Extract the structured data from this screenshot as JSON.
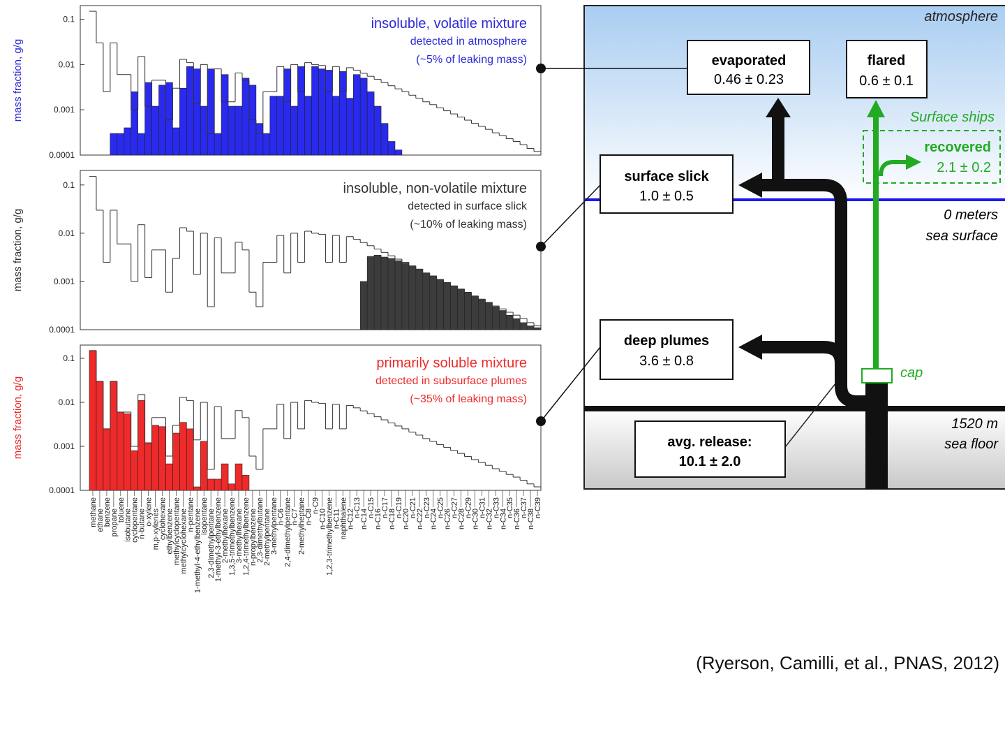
{
  "chart_data": [
    {
      "type": "bar",
      "log": true,
      "y_label": "mass fraction, g/g",
      "label_color": "#2b2bd8",
      "annotations": [
        "insoluble, volatile mixture",
        "detected in atmosphere",
        "(~5% of leaking mass)"
      ],
      "ylim": [
        0.0001,
        0.2
      ],
      "yticks": [
        0.1,
        0.01,
        0.001,
        0.0001
      ],
      "series": [
        {
          "kind": "step",
          "color": "#333333",
          "values": [
            0.15,
            0.03,
            0.0025,
            0.03,
            0.006,
            0.006,
            0.001,
            0.015,
            0.0012,
            0.0045,
            0.0045,
            0.0006,
            0.003,
            0.013,
            0.011,
            0.0014,
            0.01,
            0.0003,
            0.008,
            0.0015,
            0.0015,
            0.0065,
            0.0045,
            0.0006,
            0.0003,
            0.0025,
            0.0025,
            0.009,
            0.0015,
            0.01,
            0.0025,
            0.011,
            0.01,
            0.0095,
            0.0025,
            0.009,
            0.0025,
            0.0085,
            0.0075,
            0.0064,
            0.0055,
            0.0047,
            0.004,
            0.0034,
            0.0029,
            0.0025,
            0.0021,
            0.0018,
            0.0015,
            0.0013,
            0.0011,
            0.00095,
            0.00081,
            0.00069,
            0.00059,
            0.0005,
            0.00043,
            0.00037,
            0.00031,
            0.00027,
            0.00023,
            0.0002,
            0.00017,
            0.00014,
            0.00012
          ]
        },
        {
          "kind": "bar",
          "color": "#2a2aee",
          "values": [
            null,
            null,
            null,
            0.0003,
            0.0003,
            0.0004,
            0.0025,
            0.0003,
            0.004,
            0.0012,
            0.0035,
            0.004,
            0.0004,
            0.003,
            0.009,
            0.008,
            0.0012,
            0.008,
            0.0003,
            0.006,
            0.0012,
            0.0012,
            0.005,
            0.0035,
            0.0005,
            0.0003,
            0.002,
            0.002,
            0.008,
            0.0012,
            0.009,
            0.002,
            0.009,
            0.008,
            0.0075,
            0.002,
            0.007,
            0.0018,
            0.006,
            0.005,
            0.0025,
            0.0012,
            0.0005,
            0.0002,
            0.00013,
            null,
            null,
            null,
            null,
            null,
            null,
            null,
            null,
            null,
            null,
            null,
            null,
            null,
            null,
            null,
            null,
            null,
            null,
            null,
            null
          ]
        }
      ]
    },
    {
      "type": "bar",
      "log": true,
      "y_label": "mass fraction, g/g",
      "label_color": "#333333",
      "annotations": [
        "insoluble, non-volatile mixture",
        "detected in surface slick",
        "(~10% of leaking mass)"
      ],
      "ylim": [
        0.0001,
        0.2
      ],
      "yticks": [
        0.1,
        0.01,
        0.001,
        0.0001
      ],
      "series": [
        {
          "kind": "step",
          "color": "#333333",
          "values": [
            0.15,
            0.03,
            0.0025,
            0.03,
            0.006,
            0.006,
            0.001,
            0.015,
            0.0012,
            0.0045,
            0.0045,
            0.0006,
            0.003,
            0.013,
            0.011,
            0.0014,
            0.01,
            0.0003,
            0.008,
            0.0015,
            0.0015,
            0.0065,
            0.0045,
            0.0006,
            0.0003,
            0.0025,
            0.0025,
            0.009,
            0.0015,
            0.01,
            0.0025,
            0.011,
            0.01,
            0.0095,
            0.0025,
            0.009,
            0.0025,
            0.0085,
            0.0075,
            0.0064,
            0.0055,
            0.0047,
            0.004,
            0.0034,
            0.0029,
            0.0025,
            0.0021,
            0.0018,
            0.0015,
            0.0013,
            0.0011,
            0.00095,
            0.00081,
            0.00069,
            0.00059,
            0.0005,
            0.00043,
            0.00037,
            0.00031,
            0.00027,
            0.00023,
            0.0002,
            0.00017,
            0.00014,
            0.00012
          ]
        },
        {
          "kind": "bar",
          "color": "#3c3c3c",
          "values": [
            null,
            null,
            null,
            null,
            null,
            null,
            null,
            null,
            null,
            null,
            null,
            null,
            null,
            null,
            null,
            null,
            null,
            null,
            null,
            null,
            null,
            null,
            null,
            null,
            null,
            null,
            null,
            null,
            null,
            null,
            null,
            null,
            null,
            null,
            null,
            null,
            null,
            null,
            null,
            0.001,
            0.0033,
            0.0035,
            0.0032,
            0.003,
            0.0027,
            0.0024,
            0.0021,
            0.0018,
            0.0015,
            0.0013,
            0.0011,
            0.00095,
            0.0008,
            0.0007,
            0.0006,
            0.0005,
            0.00042,
            0.00036,
            0.0003,
            0.00025,
            0.0002,
            0.00017,
            0.00014,
            0.00012,
            0.00011
          ]
        }
      ]
    },
    {
      "type": "bar",
      "log": true,
      "y_label": "mass fraction, g/g",
      "label_color": "#ee2a2a",
      "annotations": [
        "primarily soluble mixture",
        "detected in subsurface plumes",
        "(~35% of leaking mass)"
      ],
      "ylim": [
        0.0001,
        0.2
      ],
      "yticks": [
        0.1,
        0.01,
        0.001,
        0.0001
      ],
      "categories": [
        "methane",
        "ethane",
        "benzene",
        "propane",
        "toluene",
        "isobutane",
        "cyclopentane",
        "n-butane",
        "o-xylene",
        "m,p-xylenes",
        "cyclohexane",
        "ethylbenzene",
        "methylcyclopentane",
        "methylcyclohexane",
        "n-pentane",
        "1-methyl-4-ethylbenzene",
        "isopentane",
        "2,3-dimethylpentane",
        "1-methyl-3-ethylbenzene",
        "2-methylhexane",
        "1,3,5-trimethylbenzene",
        "3-methylhexane",
        "1,2,4-trimethylbenzene",
        "n-propylbenzene",
        "2,3-dimethylbutane",
        "2-methylpentane",
        "3-methylpentane",
        "n-C6",
        "2,4-dimethylpentane",
        "n-C7",
        "2-methylheptane",
        "n-C8",
        "n-C9",
        "n-C10",
        "1,2,3-trimethylbenzene",
        "n-C11",
        "naphthalene",
        "n-C12",
        "n-C13",
        "n-C14",
        "n-C15",
        "n-C16",
        "n-C17",
        "n-C18",
        "n-C19",
        "n-C20",
        "n-C21",
        "n-C22",
        "n-C23",
        "n-C24",
        "n-C25",
        "n-C26",
        "n-C27",
        "n-C28",
        "n-C29",
        "n-C30",
        "n-C31",
        "n-C32",
        "n-C33",
        "n-C34",
        "n-C35",
        "n-C36",
        "n-C37",
        "n-C38",
        "n-C39"
      ],
      "series": [
        {
          "kind": "step",
          "color": "#333333",
          "values": [
            0.15,
            0.03,
            0.0025,
            0.03,
            0.006,
            0.006,
            0.001,
            0.015,
            0.0012,
            0.0045,
            0.0045,
            0.0006,
            0.003,
            0.013,
            0.011,
            0.0014,
            0.01,
            0.0003,
            0.008,
            0.0015,
            0.0015,
            0.0065,
            0.0045,
            0.0006,
            0.0003,
            0.0025,
            0.0025,
            0.009,
            0.0015,
            0.01,
            0.0025,
            0.011,
            0.01,
            0.0095,
            0.0025,
            0.009,
            0.0025,
            0.0085,
            0.0075,
            0.0064,
            0.0055,
            0.0047,
            0.004,
            0.0034,
            0.0029,
            0.0025,
            0.0021,
            0.0018,
            0.0015,
            0.0013,
            0.0011,
            0.00095,
            0.00081,
            0.00069,
            0.00059,
            0.0005,
            0.00043,
            0.00037,
            0.00031,
            0.00027,
            0.00023,
            0.0002,
            0.00017,
            0.00014,
            0.00012
          ]
        },
        {
          "kind": "bar",
          "color": "#ee2a2a",
          "values": [
            0.15,
            0.03,
            0.0025,
            0.03,
            0.006,
            0.0055,
            0.0008,
            0.011,
            0.0012,
            0.003,
            0.0028,
            0.0004,
            0.002,
            0.0035,
            0.0025,
            0.00012,
            0.0013,
            0.00018,
            0.00018,
            0.0004,
            0.00014,
            0.0004,
            0.00022,
            null,
            null,
            null,
            null,
            null,
            null,
            null,
            null,
            null,
            null,
            null,
            null,
            null,
            null,
            null,
            null,
            null,
            null,
            null,
            null,
            null,
            null,
            null,
            null,
            null,
            null,
            null,
            null,
            null,
            null,
            null,
            null,
            null,
            null,
            null,
            null,
            null,
            null,
            null,
            null,
            null,
            null
          ]
        }
      ]
    }
  ],
  "diagram": {
    "atmosphere": "atmosphere",
    "evaporated": {
      "label": "evaporated",
      "value": "0.46 ± 0.23"
    },
    "flared": {
      "label": "flared",
      "value": "0.6 ± 0.1"
    },
    "ships": "Surface ships",
    "recovered": {
      "label": "recovered",
      "value": "2.1 ± 0.2"
    },
    "slick": {
      "label": "surface slick",
      "value": "1.0 ± 0.5"
    },
    "surface": [
      "0 meters",
      "sea surface"
    ],
    "plumes": {
      "label": "deep plumes",
      "value": "3.6 ± 0.8"
    },
    "cap": "cap",
    "floor": [
      "1520 m",
      "sea floor"
    ],
    "release": {
      "label": "avg. release:",
      "value": "10.1 ± 2.0"
    }
  },
  "citation": "(Ryerson, Camilli, et al., PNAS, 2012)"
}
